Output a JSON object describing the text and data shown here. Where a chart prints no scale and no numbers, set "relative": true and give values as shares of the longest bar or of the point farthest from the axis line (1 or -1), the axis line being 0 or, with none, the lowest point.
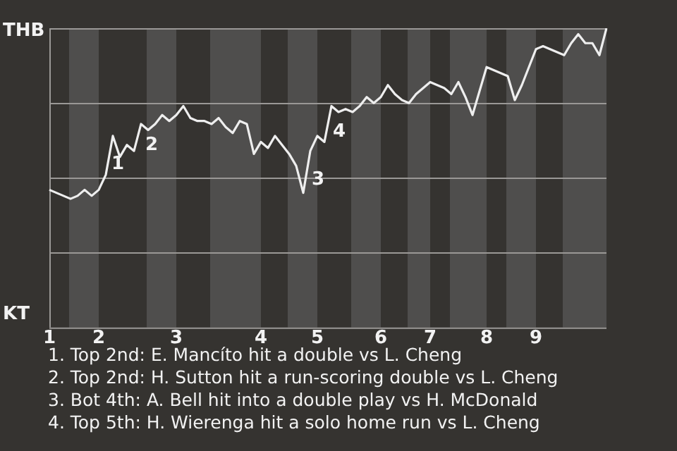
{
  "chart_data": {
    "type": "line",
    "relative": true,
    "categories": [
      "1",
      null,
      null,
      null,
      null,
      null,
      null,
      "2",
      null,
      null,
      null,
      null,
      null,
      null,
      null,
      null,
      null,
      null,
      "3",
      null,
      null,
      null,
      null,
      null,
      null,
      null,
      null,
      null,
      null,
      null,
      "4",
      null,
      null,
      null,
      null,
      null,
      null,
      null,
      "5",
      null,
      null,
      null,
      null,
      null,
      null,
      null,
      null,
      "6",
      null,
      null,
      null,
      null,
      null,
      null,
      "7",
      null,
      null,
      null,
      null,
      null,
      null,
      null,
      "8",
      null,
      null,
      null,
      null,
      null,
      null,
      "9",
      null,
      null,
      null,
      null,
      null,
      null,
      null,
      null,
      null,
      null
    ],
    "series": [
      {
        "color": "#eeeeee",
        "values": [
          0.46,
          0.45,
          0.44,
          0.43,
          0.44,
          0.46,
          0.44,
          0.46,
          0.51,
          0.64,
          0.57,
          0.61,
          0.59,
          0.68,
          0.66,
          0.68,
          0.71,
          0.69,
          0.71,
          0.74,
          0.7,
          0.69,
          0.69,
          0.68,
          0.7,
          0.67,
          0.65,
          0.69,
          0.68,
          0.58,
          0.62,
          0.6,
          0.64,
          0.61,
          0.58,
          0.54,
          0.45,
          0.59,
          0.64,
          0.62,
          0.74,
          0.72,
          0.73,
          0.72,
          0.74,
          0.77,
          0.75,
          0.77,
          0.81,
          0.78,
          0.76,
          0.75,
          0.78,
          0.8,
          0.82,
          0.81,
          0.8,
          0.78,
          0.82,
          0.77,
          0.71,
          0.79,
          0.87,
          0.86,
          0.85,
          0.84,
          0.76,
          0.81,
          0.87,
          0.93,
          0.94,
          0.93,
          0.92,
          0.91,
          0.95,
          0.98,
          0.95,
          0.95,
          0.91,
          1
        ]
      }
    ],
    "grid": "y",
    "legend": false,
    "marker": "none",
    "line_style": "solid",
    "annotations": [
      "THB",
      "KT",
      "1",
      "2",
      "3",
      "4",
      "1. Top 2nd: E. Mancíto hit a double vs L. Cheng",
      "2. Top 2nd: H. Sutton hit a run-scoring double vs L. Cheng",
      "3. Bot 4th: A. Bell hit into a double play vs H. McDonald",
      "4. Top 5th: H. Wierenga hit a solo home run vs L. Cheng"
    ]
  }
}
